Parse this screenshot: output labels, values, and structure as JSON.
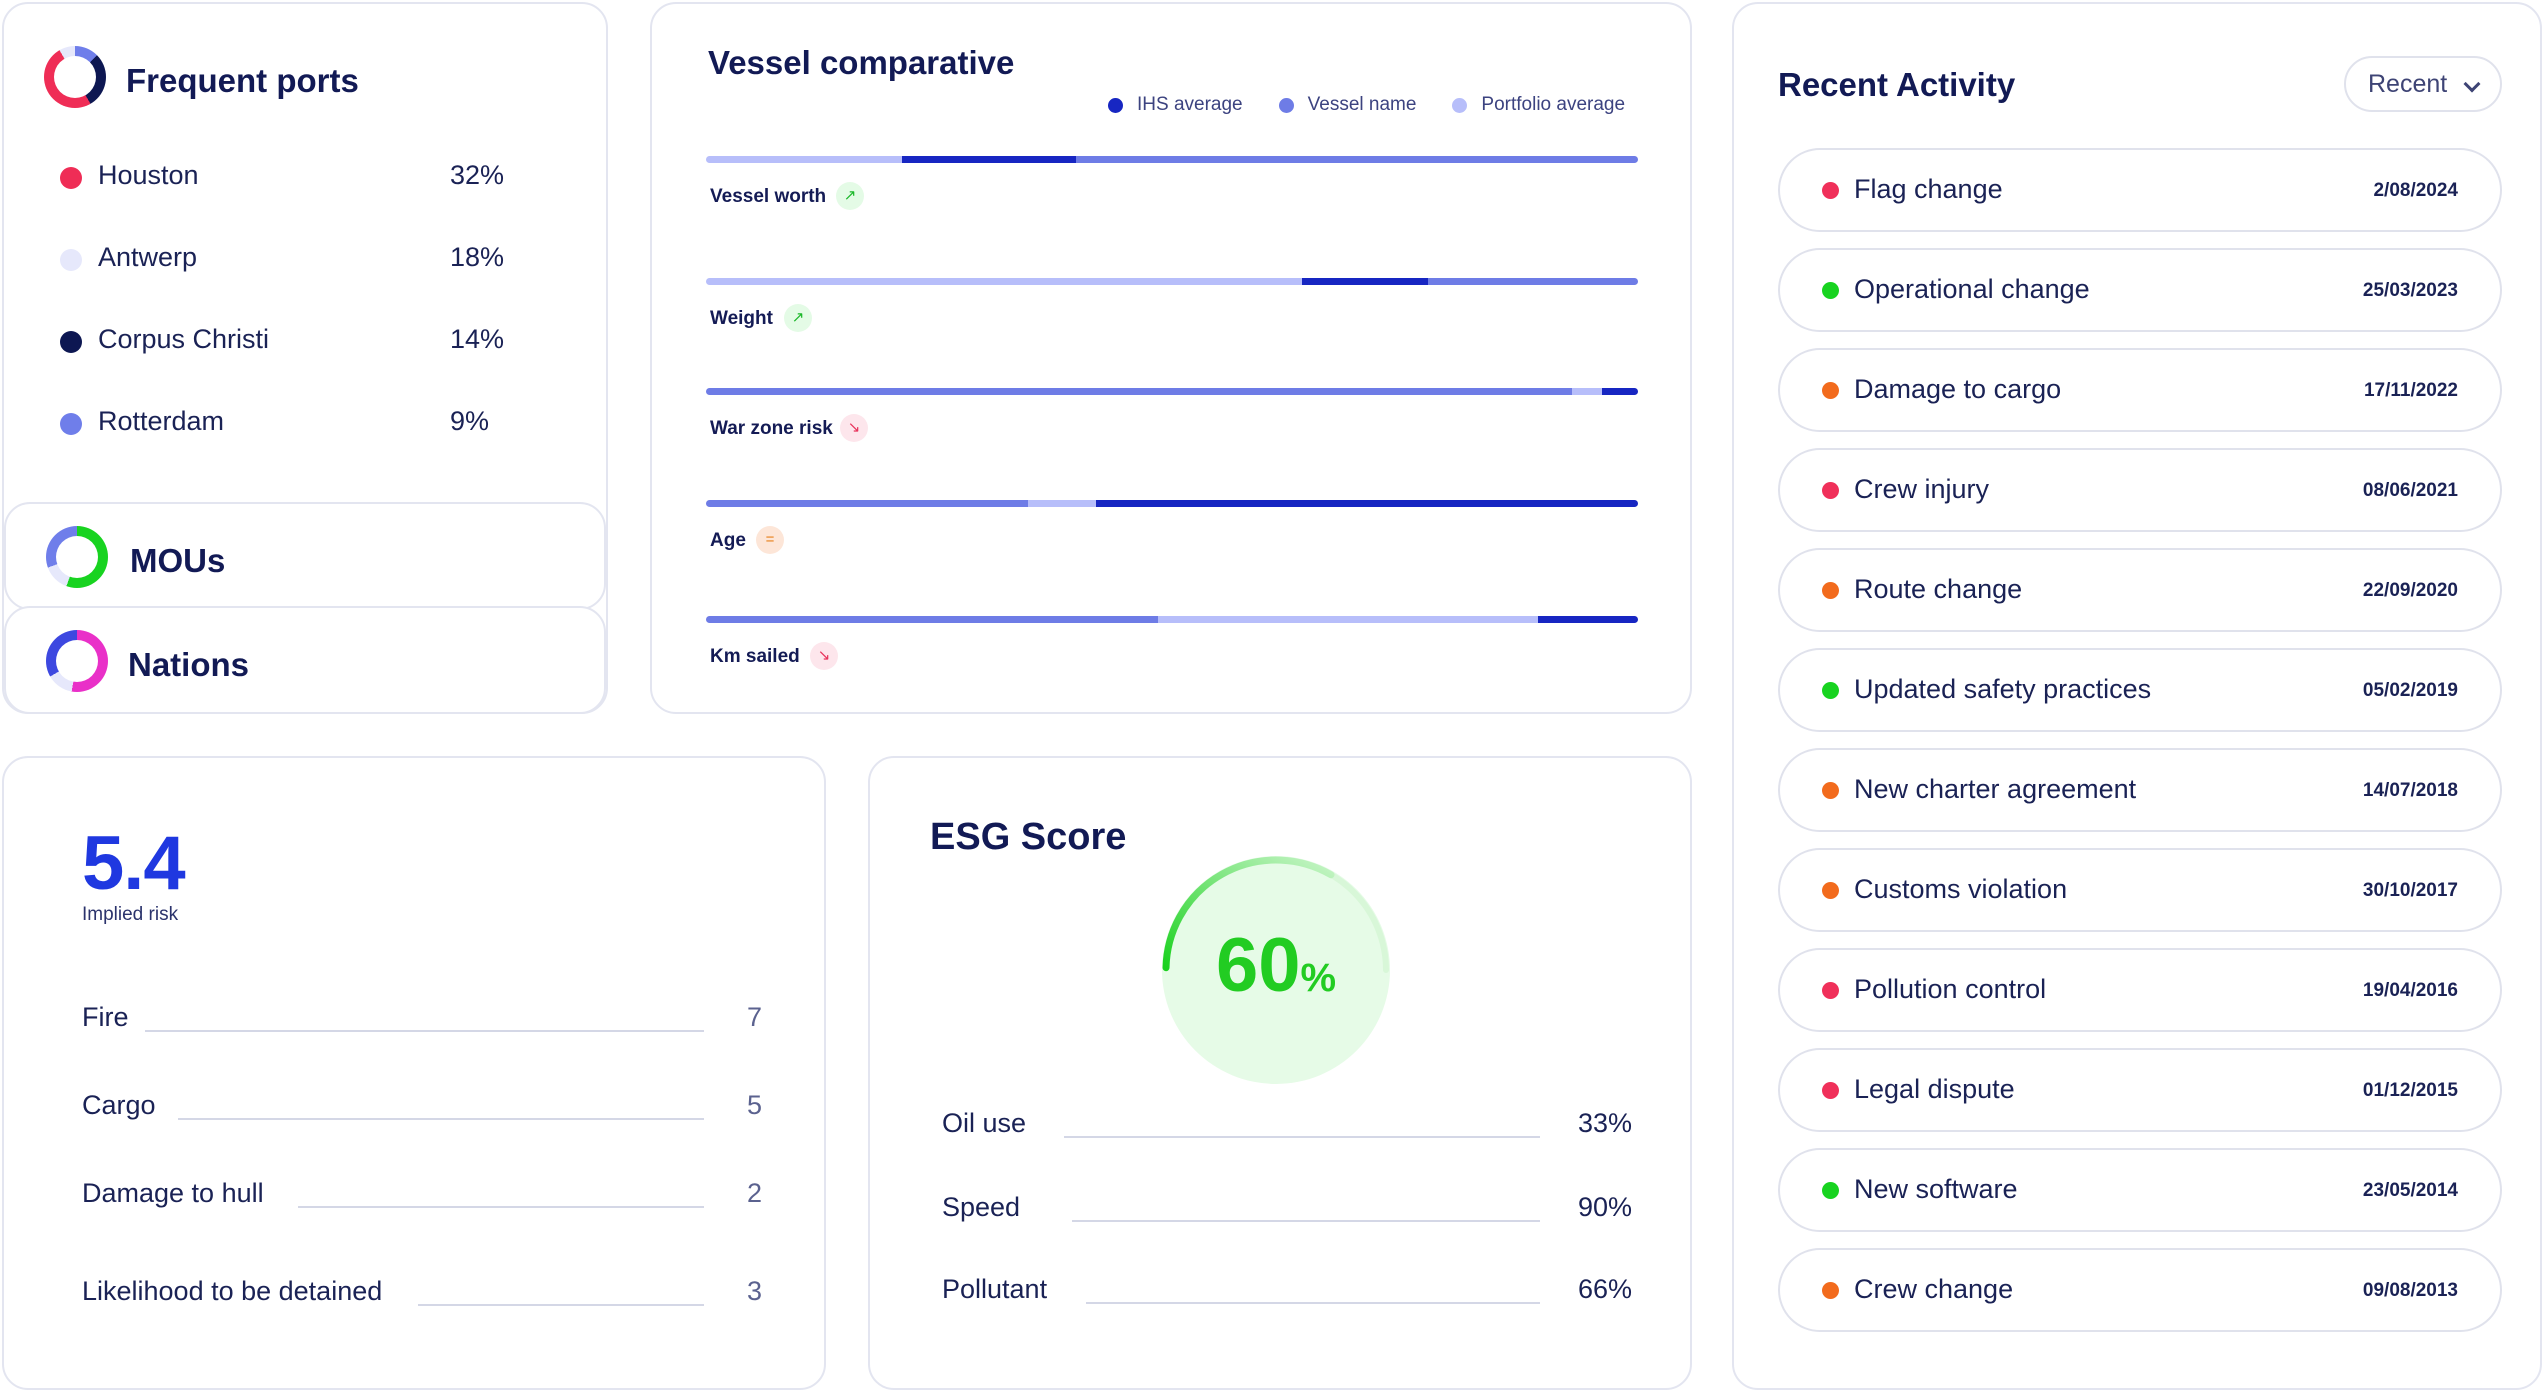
{
  "frequent_ports": {
    "title": "Frequent ports",
    "items": [
      {
        "name": "Houston",
        "pct": "32%",
        "color": "#ef2d56"
      },
      {
        "name": "Antwerp",
        "pct": "18%",
        "color": "#e6e8fb"
      },
      {
        "name": "Corpus Christi",
        "pct": "14%",
        "color": "#0d1752"
      },
      {
        "name": "Rotterdam",
        "pct": "9%",
        "color": "#6f7eea"
      }
    ]
  },
  "mous": {
    "title": "MOUs"
  },
  "nations": {
    "title": "Nations"
  },
  "vessel_comparative": {
    "title": "Vessel comparative",
    "legend": [
      {
        "label": "IHS average",
        "color": "#1726c2"
      },
      {
        "label": "Vessel name",
        "color": "#6e7ce6"
      },
      {
        "label": "Portfolio average",
        "color": "#b7befa"
      }
    ],
    "metrics": [
      {
        "label": "Vessel worth",
        "trend": "up",
        "trend_glyph": "↗"
      },
      {
        "label": "Weight",
        "trend": "up",
        "trend_glyph": "↗"
      },
      {
        "label": "War zone risk",
        "trend": "down",
        "trend_glyph": "↘"
      },
      {
        "label": "Age",
        "trend": "equal",
        "trend_glyph": "="
      },
      {
        "label": "Km sailed",
        "trend": "down",
        "trend_glyph": "↘"
      }
    ]
  },
  "implied_risk": {
    "score": "5.4",
    "caption": "Implied risk",
    "rows": [
      {
        "label": "Fire",
        "value": "7"
      },
      {
        "label": "Cargo",
        "value": "5"
      },
      {
        "label": "Damage to hull",
        "value": "2"
      },
      {
        "label": "Likelihood to be detained",
        "value": "3"
      }
    ]
  },
  "esg": {
    "title": "ESG Score",
    "value": "60",
    "unit": "%",
    "progress": 0.6,
    "rows": [
      {
        "label": "Oil use",
        "value": "33%"
      },
      {
        "label": "Speed",
        "value": "90%"
      },
      {
        "label": "Pollutant",
        "value": "66%"
      }
    ]
  },
  "recent_activity": {
    "title": "Recent Activity",
    "filter_label": "Recent",
    "items": [
      {
        "label": "Flag change",
        "date": "2/08/2024",
        "color": "#f0305a"
      },
      {
        "label": "Operational change",
        "date": "25/03/2023",
        "color": "#18d320"
      },
      {
        "label": "Damage to cargo",
        "date": "17/11/2022",
        "color": "#f26b1d"
      },
      {
        "label": "Crew injury",
        "date": "08/06/2021",
        "color": "#f0305a"
      },
      {
        "label": "Route change",
        "date": "22/09/2020",
        "color": "#f26b1d"
      },
      {
        "label": "Updated safety practices",
        "date": "05/02/2019",
        "color": "#18d320"
      },
      {
        "label": "New charter agreement",
        "date": "14/07/2018",
        "color": "#f26b1d"
      },
      {
        "label": "Customs violation",
        "date": "30/10/2017",
        "color": "#f26b1d"
      },
      {
        "label": "Pollution control",
        "date": "19/04/2016",
        "color": "#f0305a"
      },
      {
        "label": "Legal dispute",
        "date": "01/12/2015",
        "color": "#f0305a"
      },
      {
        "label": "New software",
        "date": "23/05/2014",
        "color": "#18d320"
      },
      {
        "label": "Crew change",
        "date": "09/08/2013",
        "color": "#f26b1d"
      }
    ]
  }
}
